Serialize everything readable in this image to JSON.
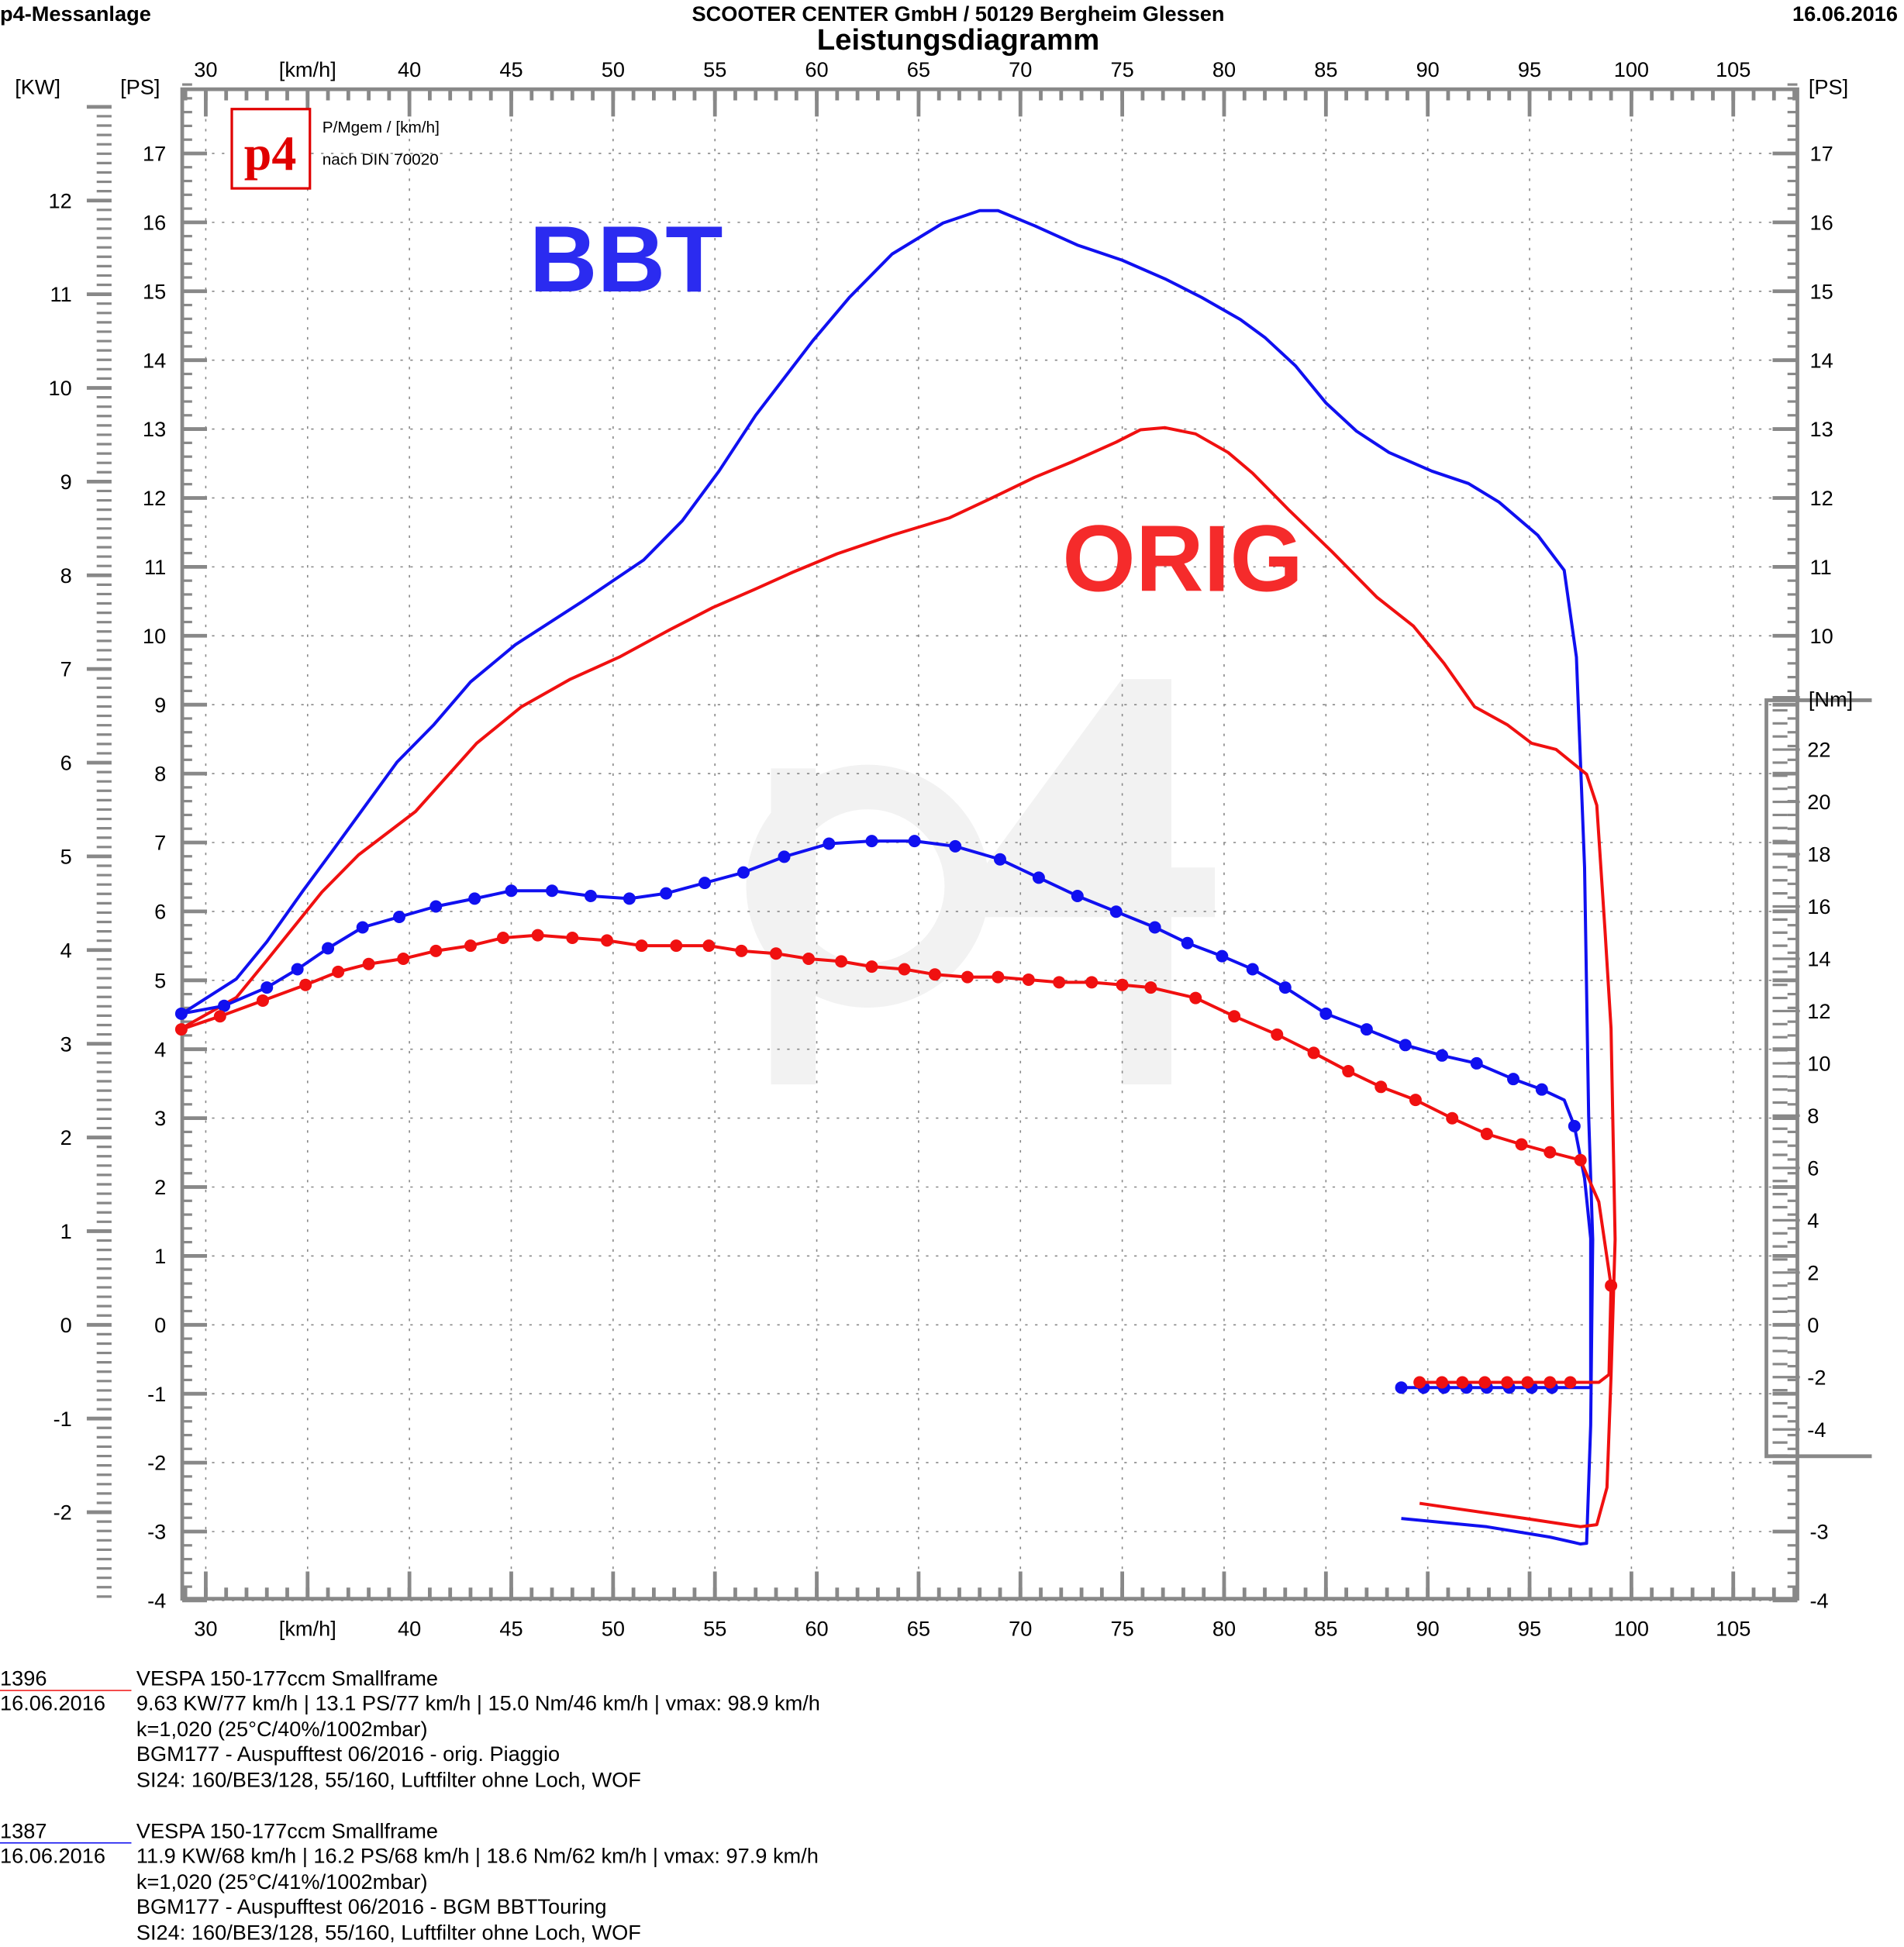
{
  "header": {
    "left": "p4-Messanlage",
    "center": "SCOOTER CENTER GmbH / 50129 Bergheim Glessen",
    "title": "Leistungsdiagramm",
    "date": "16.06.2016"
  },
  "logo": {
    "text": "p4",
    "line1": "P/Mgem / [km/h]",
    "line2": "nach DIN 70020"
  },
  "labels": {
    "bbt": "BBT",
    "orig": "ORIG",
    "watermark": "p4"
  },
  "colors": {
    "bbt": "#1010f0",
    "orig": "#f01010",
    "grid": "#888888"
  },
  "chart_data": {
    "type": "line",
    "title": "Leistungsdiagramm",
    "xlabel": "[km/h]",
    "ylabel_left_kw": "[KW]",
    "ylabel_left_ps": "[PS]",
    "ylabel_right_ps": "[PS]",
    "ylabel_right_nm": "[Nm]",
    "xlim": [
      28.8,
      108
    ],
    "ylim_ps": [
      -4,
      18
    ],
    "ylim_kw": [
      -2.9,
      13
    ],
    "ylim_nm": [
      -5,
      24
    ],
    "x_ticks": [
      "30",
      "40",
      "45",
      "50",
      "55",
      "60",
      "65",
      "70",
      "75",
      "80",
      "85",
      "90",
      "95",
      "100",
      "105"
    ],
    "ps_ticks": [
      "-4",
      "-3",
      "-2",
      "-1",
      "0",
      "1",
      "2",
      "3",
      "4",
      "5",
      "6",
      "7",
      "8",
      "9",
      "10",
      "11",
      "12",
      "13",
      "14",
      "15",
      "16",
      "17"
    ],
    "kw_ticks": [
      "-2",
      "-1",
      "0",
      "1",
      "2",
      "3",
      "4",
      "5",
      "6",
      "7",
      "8",
      "9",
      "10",
      "11",
      "12"
    ],
    "nm_ticks": [
      "-4",
      "-2",
      "0",
      "2",
      "4",
      "6",
      "8",
      "10",
      "12",
      "14",
      "16",
      "18",
      "20",
      "22"
    ],
    "grid": true,
    "series": [
      {
        "name": "BBT power (PS)",
        "color": "#1010f0",
        "kind": "power",
        "points": [
          [
            28.8,
            4.51
          ],
          [
            31.5,
            5.02
          ],
          [
            33.0,
            5.56
          ],
          [
            34.8,
            6.31
          ],
          [
            36.3,
            6.91
          ],
          [
            39.4,
            8.17
          ],
          [
            41.2,
            8.71
          ],
          [
            43.0,
            9.33
          ],
          [
            45.2,
            9.87
          ],
          [
            48.5,
            10.5
          ],
          [
            51.5,
            11.1
          ],
          [
            53.4,
            11.67
          ],
          [
            55.2,
            12.39
          ],
          [
            57.0,
            13.2
          ],
          [
            59.8,
            14.28
          ],
          [
            61.6,
            14.91
          ],
          [
            63.7,
            15.54
          ],
          [
            66.2,
            15.99
          ],
          [
            68.0,
            16.17
          ],
          [
            68.9,
            16.17
          ],
          [
            70.7,
            15.95
          ],
          [
            72.8,
            15.67
          ],
          [
            75.0,
            15.45
          ],
          [
            77.1,
            15.18
          ],
          [
            78.9,
            14.91
          ],
          [
            80.8,
            14.59
          ],
          [
            82.0,
            14.33
          ],
          [
            83.5,
            13.92
          ],
          [
            85.0,
            13.38
          ],
          [
            86.5,
            12.97
          ],
          [
            88.1,
            12.66
          ],
          [
            90.2,
            12.39
          ],
          [
            92.0,
            12.21
          ],
          [
            93.5,
            11.94
          ],
          [
            95.4,
            11.46
          ],
          [
            96.7,
            10.95
          ],
          [
            97.3,
            9.69
          ],
          [
            97.7,
            6.64
          ],
          [
            97.9,
            3.04
          ],
          [
            98.1,
            1.24
          ],
          [
            98.0,
            -1.46
          ],
          [
            97.8,
            -3.17
          ],
          [
            97.5,
            -3.18
          ],
          [
            96.0,
            -3.08
          ],
          [
            92.9,
            -2.93
          ],
          [
            88.7,
            -2.81
          ]
        ]
      },
      {
        "name": "ORIG power (PS)",
        "color": "#f01010",
        "kind": "power",
        "points": [
          [
            28.8,
            4.3
          ],
          [
            31.5,
            4.75
          ],
          [
            33.0,
            5.29
          ],
          [
            35.7,
            6.28
          ],
          [
            37.5,
            6.82
          ],
          [
            40.3,
            7.45
          ],
          [
            43.3,
            8.44
          ],
          [
            45.5,
            8.97
          ],
          [
            47.9,
            9.37
          ],
          [
            50.3,
            9.69
          ],
          [
            52.8,
            10.09
          ],
          [
            54.9,
            10.41
          ],
          [
            57.0,
            10.68
          ],
          [
            58.8,
            10.92
          ],
          [
            61.0,
            11.19
          ],
          [
            63.7,
            11.46
          ],
          [
            66.5,
            11.71
          ],
          [
            68.6,
            12.0
          ],
          [
            70.7,
            12.3
          ],
          [
            72.5,
            12.52
          ],
          [
            74.7,
            12.81
          ],
          [
            75.9,
            12.99
          ],
          [
            77.1,
            13.02
          ],
          [
            78.6,
            12.93
          ],
          [
            80.2,
            12.66
          ],
          [
            81.4,
            12.36
          ],
          [
            83.2,
            11.82
          ],
          [
            85.3,
            11.22
          ],
          [
            87.5,
            10.56
          ],
          [
            89.3,
            10.14
          ],
          [
            90.8,
            9.6
          ],
          [
            92.3,
            8.97
          ],
          [
            93.9,
            8.71
          ],
          [
            95.1,
            8.44
          ],
          [
            96.3,
            8.35
          ],
          [
            97.8,
            7.99
          ],
          [
            98.3,
            7.54
          ],
          [
            98.7,
            5.74
          ],
          [
            99.0,
            4.3
          ],
          [
            99.2,
            1.24
          ],
          [
            99.0,
            -0.74
          ],
          [
            98.8,
            -2.36
          ],
          [
            98.3,
            -2.9
          ],
          [
            97.5,
            -2.93
          ],
          [
            94.8,
            -2.81
          ],
          [
            91.7,
            -2.68
          ],
          [
            89.6,
            -2.59
          ]
        ]
      },
      {
        "name": "BBT torque (Nm)",
        "color": "#1010f0",
        "kind": "torque",
        "points": [
          [
            28.8,
            11.9
          ],
          [
            30.9,
            12.2
          ],
          [
            33.0,
            12.9
          ],
          [
            34.5,
            13.6
          ],
          [
            36.0,
            14.4
          ],
          [
            37.7,
            15.2
          ],
          [
            39.5,
            15.6
          ],
          [
            41.3,
            16.0
          ],
          [
            43.2,
            16.3
          ],
          [
            45.0,
            16.6
          ],
          [
            47.0,
            16.6
          ],
          [
            48.9,
            16.4
          ],
          [
            50.8,
            16.3
          ],
          [
            52.6,
            16.5
          ],
          [
            54.5,
            16.9
          ],
          [
            56.4,
            17.3
          ],
          [
            58.4,
            17.9
          ],
          [
            60.6,
            18.4
          ],
          [
            62.7,
            18.5
          ],
          [
            64.8,
            18.5
          ],
          [
            66.8,
            18.3
          ],
          [
            69.0,
            17.8
          ],
          [
            70.9,
            17.1
          ],
          [
            72.8,
            16.4
          ],
          [
            74.7,
            15.8
          ],
          [
            76.6,
            15.2
          ],
          [
            78.2,
            14.6
          ],
          [
            79.9,
            14.1
          ],
          [
            81.4,
            13.6
          ],
          [
            83.0,
            12.9
          ],
          [
            85.0,
            11.9
          ],
          [
            87.0,
            11.3
          ],
          [
            88.9,
            10.7
          ],
          [
            90.7,
            10.3
          ],
          [
            92.4,
            10.0
          ],
          [
            94.2,
            9.4
          ],
          [
            95.6,
            9.0
          ],
          [
            96.7,
            8.6
          ],
          [
            97.2,
            7.6
          ],
          [
            97.7,
            5.6
          ],
          [
            98.0,
            3.3
          ],
          [
            98.0,
            -2.4
          ],
          [
            88.7,
            -2.4
          ]
        ],
        "markers": [
          [
            28.8,
            11.9
          ],
          [
            30.9,
            12.2
          ],
          [
            33.0,
            12.9
          ],
          [
            34.5,
            13.6
          ],
          [
            36.0,
            14.4
          ],
          [
            37.7,
            15.2
          ],
          [
            39.5,
            15.6
          ],
          [
            41.3,
            16.0
          ],
          [
            43.2,
            16.3
          ],
          [
            45.0,
            16.6
          ],
          [
            47.0,
            16.6
          ],
          [
            48.9,
            16.4
          ],
          [
            50.8,
            16.3
          ],
          [
            52.6,
            16.5
          ],
          [
            54.5,
            16.9
          ],
          [
            56.4,
            17.3
          ],
          [
            58.4,
            17.9
          ],
          [
            60.6,
            18.4
          ],
          [
            62.7,
            18.5
          ],
          [
            64.8,
            18.5
          ],
          [
            66.8,
            18.3
          ],
          [
            69.0,
            17.8
          ],
          [
            70.9,
            17.1
          ],
          [
            72.8,
            16.4
          ],
          [
            74.7,
            15.8
          ],
          [
            76.6,
            15.2
          ],
          [
            78.2,
            14.6
          ],
          [
            79.9,
            14.1
          ],
          [
            81.4,
            13.6
          ],
          [
            83.0,
            12.9
          ],
          [
            85.0,
            11.9
          ],
          [
            87.0,
            11.3
          ],
          [
            88.9,
            10.7
          ],
          [
            90.7,
            10.3
          ],
          [
            92.4,
            10.0
          ],
          [
            94.2,
            9.4
          ],
          [
            95.6,
            9.0
          ],
          [
            97.2,
            7.6
          ],
          [
            88.7,
            -2.4
          ],
          [
            89.8,
            -2.4
          ],
          [
            90.8,
            -2.4
          ],
          [
            91.9,
            -2.4
          ],
          [
            92.9,
            -2.4
          ],
          [
            94.0,
            -2.4
          ],
          [
            95.1,
            -2.4
          ],
          [
            96.1,
            -2.4
          ]
        ]
      },
      {
        "name": "ORIG torque (Nm)",
        "color": "#f01010",
        "kind": "torque",
        "points": [
          [
            28.8,
            11.3
          ],
          [
            30.7,
            11.8
          ],
          [
            32.8,
            12.4
          ],
          [
            34.9,
            13.0
          ],
          [
            36.5,
            13.5
          ],
          [
            38.0,
            13.8
          ],
          [
            39.7,
            14.0
          ],
          [
            41.3,
            14.3
          ],
          [
            43.0,
            14.5
          ],
          [
            44.6,
            14.8
          ],
          [
            46.3,
            14.9
          ],
          [
            48.0,
            14.8
          ],
          [
            49.7,
            14.7
          ],
          [
            51.4,
            14.5
          ],
          [
            53.1,
            14.5
          ],
          [
            54.7,
            14.5
          ],
          [
            56.3,
            14.3
          ],
          [
            58.0,
            14.2
          ],
          [
            59.6,
            14.0
          ],
          [
            61.2,
            13.9
          ],
          [
            62.7,
            13.7
          ],
          [
            64.3,
            13.6
          ],
          [
            65.8,
            13.4
          ],
          [
            67.4,
            13.3
          ],
          [
            68.9,
            13.3
          ],
          [
            70.4,
            13.2
          ],
          [
            71.9,
            13.1
          ],
          [
            73.5,
            13.1
          ],
          [
            75.0,
            13.0
          ],
          [
            76.4,
            12.9
          ],
          [
            78.6,
            12.5
          ],
          [
            80.5,
            11.8
          ],
          [
            82.6,
            11.1
          ],
          [
            84.4,
            10.4
          ],
          [
            86.1,
            9.7
          ],
          [
            87.7,
            9.1
          ],
          [
            89.4,
            8.6
          ],
          [
            91.2,
            7.9
          ],
          [
            92.9,
            7.3
          ],
          [
            94.6,
            6.9
          ],
          [
            96.0,
            6.6
          ],
          [
            97.5,
            6.3
          ],
          [
            98.4,
            4.7
          ],
          [
            99.0,
            1.5
          ],
          [
            98.9,
            -1.9
          ],
          [
            98.4,
            -2.2
          ],
          [
            89.6,
            -2.2
          ]
        ],
        "markers": [
          [
            28.8,
            11.3
          ],
          [
            30.7,
            11.8
          ],
          [
            32.8,
            12.4
          ],
          [
            34.9,
            13.0
          ],
          [
            36.5,
            13.5
          ],
          [
            38.0,
            13.8
          ],
          [
            39.7,
            14.0
          ],
          [
            41.3,
            14.3
          ],
          [
            43.0,
            14.5
          ],
          [
            44.6,
            14.8
          ],
          [
            46.3,
            14.9
          ],
          [
            48.0,
            14.8
          ],
          [
            49.7,
            14.7
          ],
          [
            51.4,
            14.5
          ],
          [
            53.1,
            14.5
          ],
          [
            54.7,
            14.5
          ],
          [
            56.3,
            14.3
          ],
          [
            58.0,
            14.2
          ],
          [
            59.6,
            14.0
          ],
          [
            61.2,
            13.9
          ],
          [
            62.7,
            13.7
          ],
          [
            64.3,
            13.6
          ],
          [
            65.8,
            13.4
          ],
          [
            67.4,
            13.3
          ],
          [
            68.9,
            13.3
          ],
          [
            70.4,
            13.2
          ],
          [
            71.9,
            13.1
          ],
          [
            73.5,
            13.1
          ],
          [
            75.0,
            13.0
          ],
          [
            76.4,
            12.9
          ],
          [
            78.6,
            12.5
          ],
          [
            80.5,
            11.8
          ],
          [
            82.6,
            11.1
          ],
          [
            84.4,
            10.4
          ],
          [
            86.1,
            9.7
          ],
          [
            87.7,
            9.1
          ],
          [
            89.4,
            8.6
          ],
          [
            91.2,
            7.9
          ],
          [
            92.9,
            7.3
          ],
          [
            94.6,
            6.9
          ],
          [
            96.0,
            6.6
          ],
          [
            97.5,
            6.3
          ],
          [
            99.0,
            1.5
          ],
          [
            89.6,
            -2.2
          ],
          [
            90.7,
            -2.2
          ],
          [
            91.7,
            -2.2
          ],
          [
            92.8,
            -2.2
          ],
          [
            93.9,
            -2.2
          ],
          [
            94.9,
            -2.2
          ],
          [
            96.0,
            -2.2
          ],
          [
            97.0,
            -2.2
          ]
        ]
      }
    ]
  },
  "runs": [
    {
      "id": "1396",
      "date": "16.06.2016",
      "color": "#f01010",
      "model": "VESPA 150-177ccm Smallframe",
      "summary": "9.63 KW/77 km/h  |  13.1 PS/77 km/h  |  15.0 Nm/46 km/h | vmax: 98.9 km/h",
      "k": "k=1,020 (25°C/40%/1002mbar)",
      "desc": "BGM177 - Auspufftest 06/2016 - orig. Piaggio",
      "setup": "SI24: 160/BE3/128, 55/160, Luftfilter ohne Loch, WOF"
    },
    {
      "id": "1387",
      "date": "16.06.2016",
      "color": "#1010f0",
      "model": "VESPA 150-177ccm Smallframe",
      "summary": "11.9 KW/68 km/h  |  16.2 PS/68 km/h  |  18.6 Nm/62 km/h | vmax: 97.9 km/h",
      "k": "k=1,020 (25°C/41%/1002mbar)",
      "desc": "BGM177 - Auspufftest 06/2016 - BGM BBTTouring",
      "setup": "SI24: 160/BE3/128, 55/160, Luftfilter ohne Loch, WOF"
    }
  ]
}
